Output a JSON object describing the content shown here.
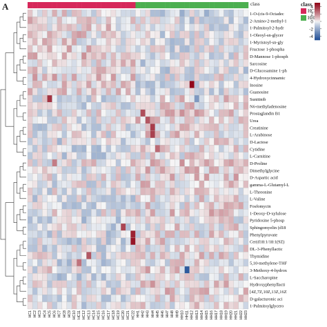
{
  "panel_label": "A",
  "colors": {
    "class_HC": "#d6285a",
    "class_HH": "#4caf50",
    "scale_low": "#1f4e96",
    "scale_mid": "#f7f7f7",
    "scale_high": "#8e0013"
  },
  "chart_data": {
    "type": "heatmap",
    "title": "",
    "annotation_title": "class",
    "class_annotation": {
      "HC": 22,
      "HH": 23
    },
    "legend": {
      "title": "class",
      "entries": [
        "HC",
        "HH"
      ]
    },
    "colorbar": {
      "ticks": [
        4,
        2,
        0,
        -2,
        -4
      ],
      "range": [
        -5,
        5
      ]
    },
    "row_labels": [
      "1-O-(cis-9-Octadec",
      "2-Amino-2-methyl-1",
      "1-Palmitoyl-2-hydr",
      "1-Oleoyl-sn-glycer",
      "1-Myristoyl-sn-gly",
      "Fructose 1-phospha",
      "D-Mannose 1-phosph",
      "Sarcosine",
      "D-Glucosamine 1-ph",
      "4-Hydroxycinnamic",
      "Inosine",
      "Guanosine",
      "Sunitinib",
      "N6-methyladenosine",
      "Prostaglandin B1",
      "Urea",
      "Creatinine",
      "L-Arabinose",
      "D-Lactose",
      "Cytidine",
      "L-Carnitine",
      "D-Proline",
      "Dimethylglycine",
      "D-Aspartic acid",
      "gamma-L-Glutamyl-L",
      "L-Threonine",
      "L-Valine",
      "Fosfomycin",
      "1-Deoxy-D-xylulose",
      "Pyridoxine 5-phosp",
      "Sphingomyelin (d18",
      "Phenylpyruvate",
      "Cer(d18:1/18:1(9Z)",
      "DL-3-Phenyllactic",
      "Thymidine",
      "5,10-methylene-THF",
      "3-Methoxy-4-hydrox",
      "L-Saccharopine",
      "Hydroxyphenyllacti",
      "[4Z,7Z,10Z,13Z,16Z",
      "D-galacturonic aci",
      "1-Palmitoylglycero"
    ],
    "col_labels": [
      "HC1",
      "HC2",
      "HC3",
      "HC4",
      "HC5",
      "HC6",
      "HC7",
      "HC8",
      "HC9",
      "HC10",
      "HC11",
      "HC12",
      "HC13",
      "HC14",
      "HC15",
      "HC16",
      "HC17",
      "HC18",
      "HC19",
      "HC20",
      "HC21",
      "HC22",
      "HH1",
      "HH2",
      "HH3",
      "HH4",
      "HH5",
      "HH6",
      "HH7",
      "HH8",
      "HH9",
      "HH10",
      "HH11",
      "HH12",
      "HH13",
      "HH14",
      "HH15",
      "HH16",
      "HH17",
      "HH18",
      "HH19",
      "HH20",
      "HH21",
      "HH22",
      "HH23"
    ],
    "highlights": [
      {
        "row": "Inosine",
        "col": "HH12",
        "value": 4.8
      },
      {
        "row": "Sunitinib",
        "col": "HC5",
        "value": 3.8
      },
      {
        "row": "Prostaglandin B1",
        "col": "HH2",
        "value": 3.2
      },
      {
        "row": "Urea",
        "col": "HH3",
        "value": 3.0
      },
      {
        "row": "Creatinine",
        "col": "HH4",
        "value": 3.6
      },
      {
        "row": "L-Arabinose",
        "col": "HH4",
        "value": 3.5
      },
      {
        "row": "Cytidine",
        "col": "HH5",
        "value": 2.6
      },
      {
        "row": "Phenylpyruvate",
        "col": "HC22",
        "value": 4.2
      },
      {
        "row": "Cer(d18:1/18:1(9Z)",
        "col": "HC22",
        "value": 4.5
      },
      {
        "row": "Sphingomyelin (d18",
        "col": "HC20",
        "value": 3.4
      },
      {
        "row": "Thymidine",
        "col": "HC13",
        "value": 3.0
      },
      {
        "row": "3-Methoxy-4-hydrox",
        "col": "HH11",
        "value": -4.6
      },
      {
        "row": "Sunitinib",
        "col": "HH13",
        "value": -2.5
      },
      {
        "row": "D-Proline",
        "col": "HC6",
        "value": 2.2
      },
      {
        "row": "5,10-methylene-THF",
        "col": "HC11",
        "value": 2.4
      }
    ]
  }
}
